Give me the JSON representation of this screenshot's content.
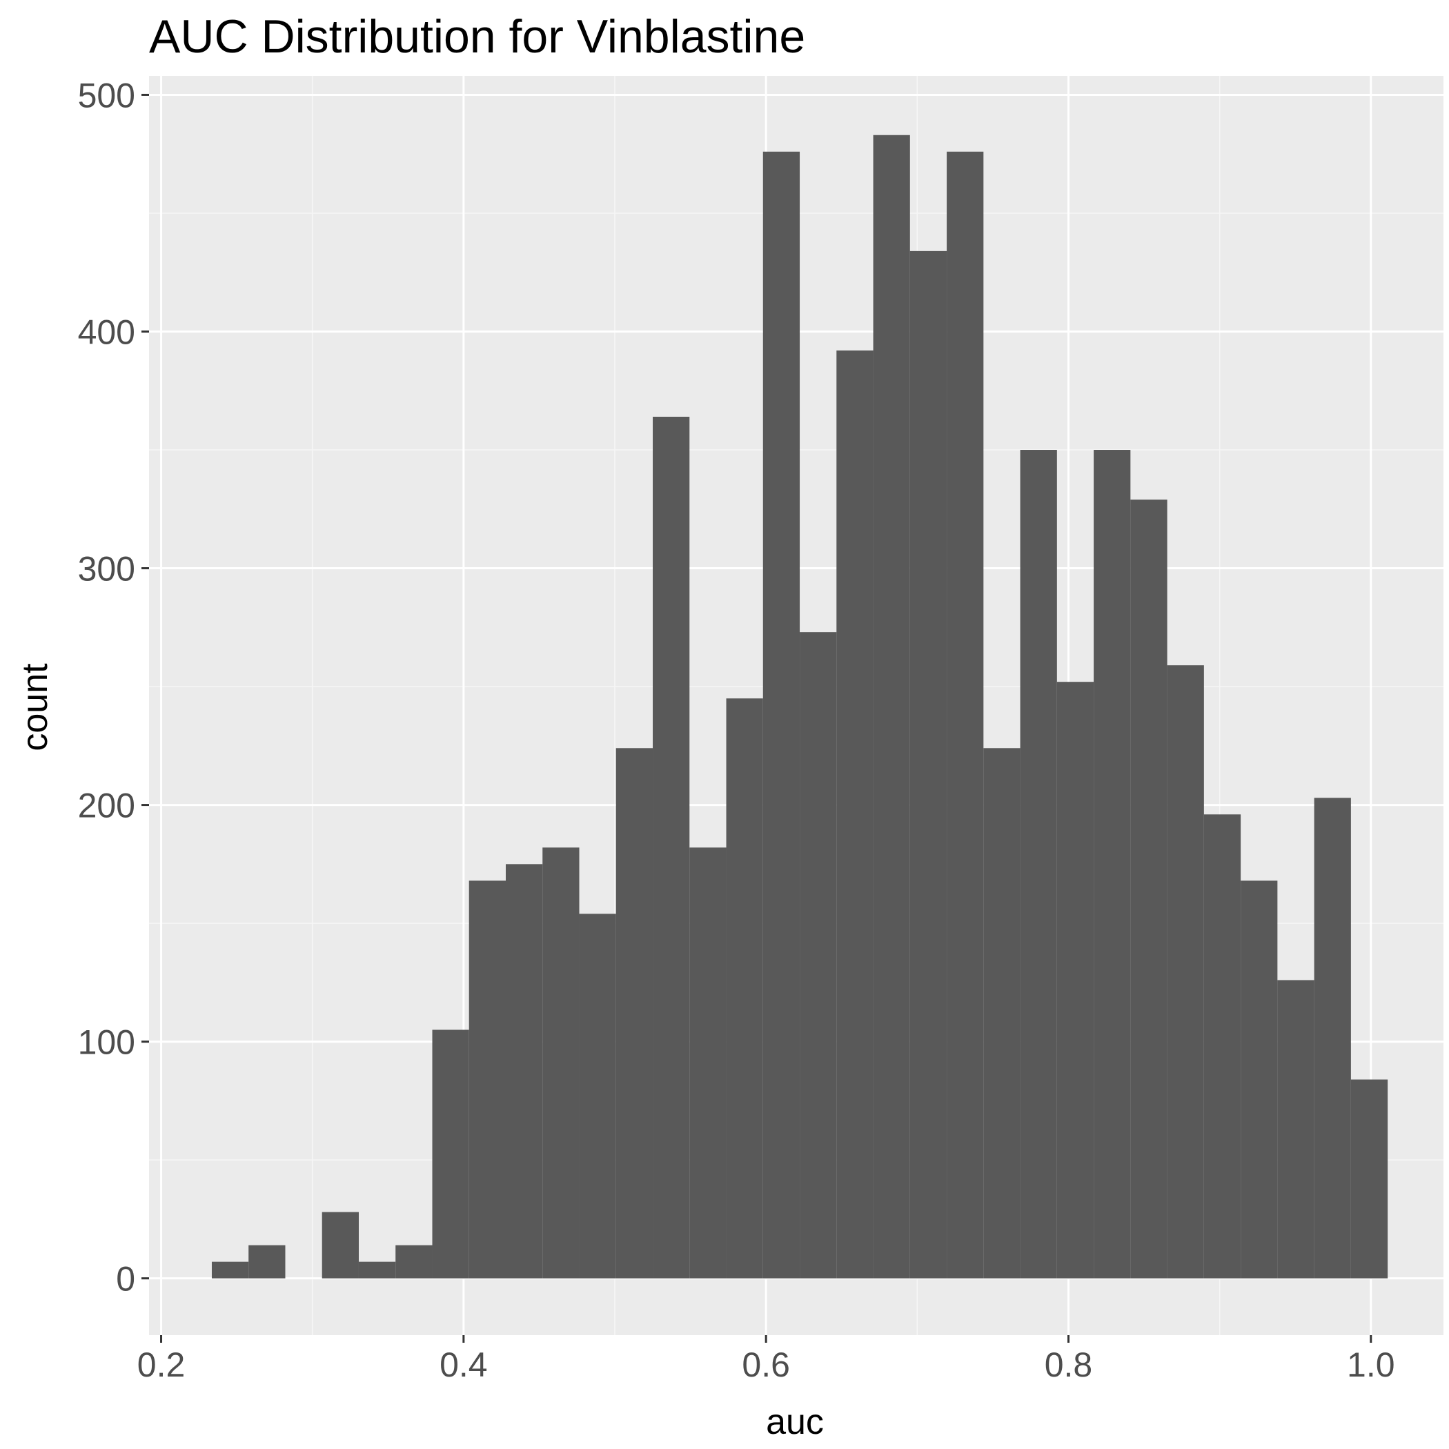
{
  "chart_data": {
    "type": "histogram",
    "title": "AUC Distribution for Vinblastine",
    "xlabel": "auc",
    "ylabel": "count",
    "xlim": [
      0.192,
      1.048
    ],
    "ylim": [
      -24,
      508
    ],
    "x_ticks": [
      0.2,
      0.4,
      0.6,
      0.8,
      1.0
    ],
    "x_tick_labels": [
      "0.2",
      "0.4",
      "0.6",
      "0.8",
      "1.0"
    ],
    "y_ticks": [
      0,
      100,
      200,
      300,
      400,
      500
    ],
    "y_tick_labels": [
      "0",
      "100",
      "200",
      "300",
      "400",
      "500"
    ],
    "bin_width": 0.0243,
    "bins": [
      {
        "x0": 0.2335,
        "x1": 0.2578,
        "count": 7
      },
      {
        "x0": 0.2578,
        "x1": 0.2821,
        "count": 14
      },
      {
        "x0": 0.2821,
        "x1": 0.3064,
        "count": 0
      },
      {
        "x0": 0.3064,
        "x1": 0.3307,
        "count": 28
      },
      {
        "x0": 0.3307,
        "x1": 0.355,
        "count": 7
      },
      {
        "x0": 0.355,
        "x1": 0.3793,
        "count": 14
      },
      {
        "x0": 0.3793,
        "x1": 0.4036,
        "count": 105
      },
      {
        "x0": 0.4036,
        "x1": 0.4279,
        "count": 168
      },
      {
        "x0": 0.4279,
        "x1": 0.4522,
        "count": 175
      },
      {
        "x0": 0.4522,
        "x1": 0.4765,
        "count": 182
      },
      {
        "x0": 0.4765,
        "x1": 0.5008,
        "count": 154
      },
      {
        "x0": 0.5008,
        "x1": 0.5251,
        "count": 224
      },
      {
        "x0": 0.5251,
        "x1": 0.5494,
        "count": 364
      },
      {
        "x0": 0.5494,
        "x1": 0.5737,
        "count": 182
      },
      {
        "x0": 0.5737,
        "x1": 0.598,
        "count": 245
      },
      {
        "x0": 0.598,
        "x1": 0.6223,
        "count": 476
      },
      {
        "x0": 0.6223,
        "x1": 0.6466,
        "count": 273
      },
      {
        "x0": 0.6466,
        "x1": 0.6709,
        "count": 392
      },
      {
        "x0": 0.6709,
        "x1": 0.6952,
        "count": 483
      },
      {
        "x0": 0.6952,
        "x1": 0.7195,
        "count": 434
      },
      {
        "x0": 0.7195,
        "x1": 0.7438,
        "count": 476
      },
      {
        "x0": 0.7438,
        "x1": 0.7681,
        "count": 224
      },
      {
        "x0": 0.7681,
        "x1": 0.7924,
        "count": 350
      },
      {
        "x0": 0.7924,
        "x1": 0.8167,
        "count": 252
      },
      {
        "x0": 0.8167,
        "x1": 0.841,
        "count": 350
      },
      {
        "x0": 0.841,
        "x1": 0.8653,
        "count": 329
      },
      {
        "x0": 0.8653,
        "x1": 0.8896,
        "count": 259
      },
      {
        "x0": 0.8896,
        "x1": 0.9139,
        "count": 196
      },
      {
        "x0": 0.9139,
        "x1": 0.9382,
        "count": 168
      },
      {
        "x0": 0.9382,
        "x1": 0.9625,
        "count": 126
      },
      {
        "x0": 0.9625,
        "x1": 0.9868,
        "count": 203
      },
      {
        "x0": 0.9868,
        "x1": 1.0111,
        "count": 84
      }
    ],
    "grid": true,
    "colors": {
      "panel_background": "#ebebeb",
      "grid_major": "#ffffff",
      "grid_minor": "#f6f6f6",
      "bar_fill": "#595959",
      "tick_mark": "#333333",
      "tick_label": "#4d4d4d"
    }
  }
}
